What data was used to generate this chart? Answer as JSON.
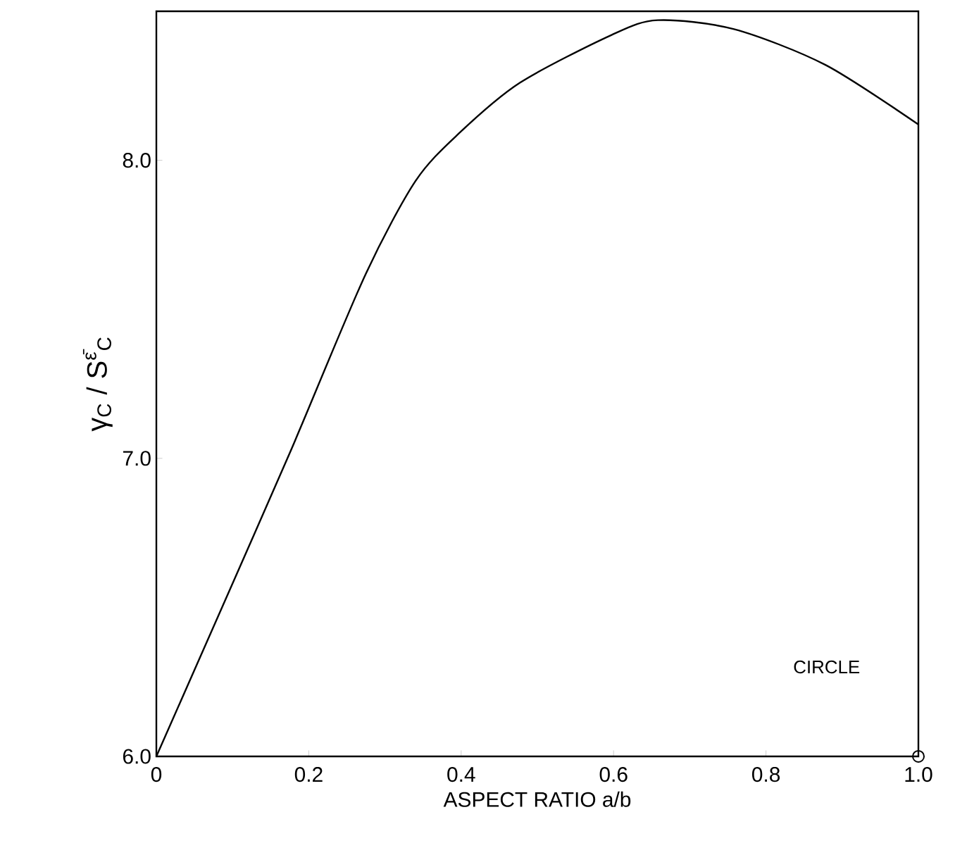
{
  "chart_data": {
    "type": "line",
    "xlabel": "ASPECT RATIO a/b",
    "ylabel": "γ$_{C}$ / S$^{ε̄}$$_{C}$",
    "x": [
      0,
      0.1,
      0.172,
      0.192,
      0.275,
      0.34,
      0.397,
      0.477,
      0.597,
      0.658,
      0.758,
      0.878,
      1.0
    ],
    "series": [
      {
        "color": "#000000",
        "values": [
          6.0,
          6.58,
          7.0,
          7.12,
          7.62,
          7.93,
          8.09,
          8.26,
          8.42,
          8.47,
          8.44,
          8.32,
          8.12
        ]
      },
      {
        "type": "scatter",
        "x": [
          1.0
        ],
        "color": "#000000",
        "values": [
          6.0
        ],
        "marker": "circle"
      }
    ],
    "xlim": [
      0,
      1.0
    ],
    "ylim": [
      6.0,
      8.5
    ],
    "xticks": [
      {
        "value": 0,
        "label": "0"
      },
      {
        "value": 0.2,
        "label": "0.2"
      },
      {
        "value": 0.4,
        "label": "0.4"
      },
      {
        "value": 0.6,
        "label": "0.6"
      },
      {
        "value": 0.8,
        "label": "0.8"
      },
      {
        "value": 1.0,
        "label": "1.0"
      }
    ],
    "yticks": [
      {
        "value": 6.0,
        "label": "6.0"
      },
      {
        "value": 7.0,
        "label": "7.0"
      },
      {
        "value": 8.0,
        "label": "8.0"
      }
    ],
    "annotations": [
      "CIRCLE"
    ],
    "grid": false,
    "marker": "none",
    "line_style": "solid"
  }
}
